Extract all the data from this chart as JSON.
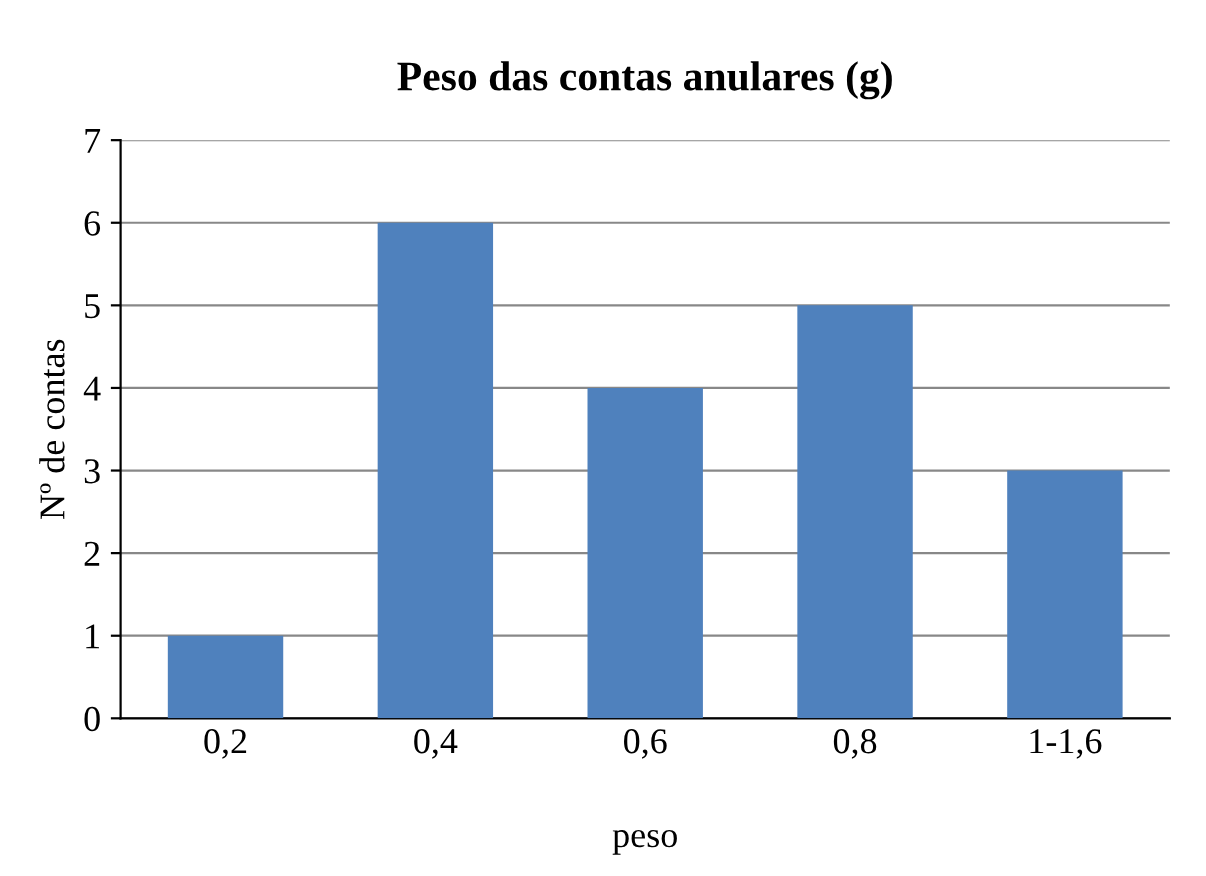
{
  "chart_data": {
    "type": "bar",
    "title": "Peso das contas anulares (g)",
    "xlabel": "peso",
    "ylabel": "Nº de contas",
    "categories": [
      "0,2",
      "0,4",
      "0,6",
      "0,8",
      "1-1,6"
    ],
    "values": [
      1,
      6,
      4,
      5,
      3
    ],
    "color": "#4f81bd",
    "ylim": [
      0,
      7
    ],
    "yticks": [
      0,
      1,
      2,
      3,
      4,
      5,
      6,
      7
    ],
    "grid": "y",
    "legend": false
  }
}
